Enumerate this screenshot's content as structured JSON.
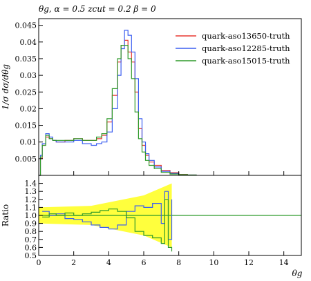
{
  "chart_data": {
    "type": "line",
    "title": "θg, α = 0.5 zcut = 0.2 β = 0",
    "xlabel": "θg",
    "ylabel": "1/σ dσ/dθg",
    "ratio_ylabel": "Ratio",
    "xlim": [
      0,
      15
    ],
    "ylim": [
      0,
      0.047
    ],
    "ratio_ylim": [
      0.5,
      1.5
    ],
    "xticks": [
      "0",
      "2",
      "4",
      "6",
      "8",
      "10",
      "12",
      "14"
    ],
    "yticks": [
      "0.005",
      "0.01",
      "0.015",
      "0.02",
      "0.025",
      "0.03",
      "0.035",
      "0.04",
      "0.045"
    ],
    "ratio_yticks": [
      "0.5",
      "0.6",
      "0.7",
      "0.8",
      "0.9",
      "1.0",
      "1.1",
      "1.2",
      "1.3",
      "1.4"
    ],
    "legend_position": "top-right",
    "series": [
      {
        "name": "quark-aso13650-truth",
        "color": "#e8362e",
        "x": [
          0,
          0.1,
          0.2,
          0.4,
          0.6,
          0.8,
          1.0,
          1.5,
          2.0,
          2.5,
          3.0,
          3.3,
          3.6,
          3.9,
          4.2,
          4.5,
          4.7,
          4.9,
          5.1,
          5.3,
          5.5,
          5.7,
          5.9,
          6.1,
          6.3,
          6.6,
          7.0,
          7.5,
          8.0,
          8.5,
          9.0
        ],
        "y": [
          0,
          0.005,
          0.009,
          0.0115,
          0.011,
          0.0105,
          0.01,
          0.0105,
          0.011,
          0.0105,
          0.0105,
          0.011,
          0.012,
          0.016,
          0.024,
          0.034,
          0.039,
          0.0405,
          0.037,
          0.034,
          0.025,
          0.014,
          0.009,
          0.006,
          0.004,
          0.003,
          0.0015,
          0.0008,
          0.0003,
          0.0001,
          0
        ]
      },
      {
        "name": "quark-aso12285-truth",
        "color": "#3b5ef0",
        "x": [
          0,
          0.1,
          0.2,
          0.4,
          0.6,
          0.8,
          1.0,
          1.5,
          2.0,
          2.5,
          3.0,
          3.3,
          3.6,
          3.9,
          4.2,
          4.5,
          4.7,
          4.9,
          5.1,
          5.3,
          5.5,
          5.7,
          5.9,
          6.1,
          6.3,
          6.6,
          7.0,
          7.5,
          8.0,
          8.5,
          9.0
        ],
        "y": [
          0,
          0.006,
          0.0095,
          0.0125,
          0.0115,
          0.0105,
          0.01,
          0.01,
          0.0105,
          0.0095,
          0.009,
          0.0095,
          0.01,
          0.013,
          0.02,
          0.03,
          0.038,
          0.0435,
          0.042,
          0.037,
          0.029,
          0.017,
          0.01,
          0.0065,
          0.0045,
          0.0025,
          0.0012,
          0.0006,
          0.0002,
          0.0001,
          0
        ]
      },
      {
        "name": "quark-aso15015-truth",
        "color": "#2f9a2a",
        "x": [
          0,
          0.1,
          0.2,
          0.4,
          0.6,
          0.8,
          1.0,
          1.5,
          2.0,
          2.5,
          3.0,
          3.3,
          3.6,
          3.9,
          4.2,
          4.5,
          4.7,
          4.9,
          5.1,
          5.3,
          5.5,
          5.7,
          5.9,
          6.1,
          6.3,
          6.6,
          7.0,
          7.5,
          8.0,
          8.5,
          9.0
        ],
        "y": [
          0,
          0.0055,
          0.009,
          0.012,
          0.011,
          0.0105,
          0.0105,
          0.0105,
          0.011,
          0.0105,
          0.0105,
          0.0115,
          0.0125,
          0.017,
          0.026,
          0.035,
          0.039,
          0.039,
          0.035,
          0.029,
          0.019,
          0.011,
          0.007,
          0.0045,
          0.003,
          0.002,
          0.0009,
          0.0004,
          0.0002,
          0.0001,
          0
        ]
      }
    ],
    "ratio_series": [
      {
        "name": "quark-aso12285-truth",
        "color": "#3b5ef0",
        "x": [
          0.2,
          0.6,
          1.0,
          1.5,
          2.0,
          2.5,
          3.0,
          3.5,
          4.0,
          4.5,
          5.0,
          5.5,
          6.0,
          6.5,
          7.0,
          7.2,
          7.4,
          7.6
        ],
        "y": [
          1.05,
          1.0,
          1.02,
          0.96,
          0.95,
          0.92,
          0.88,
          0.85,
          0.83,
          0.88,
          1.05,
          1.12,
          1.1,
          1.15,
          0.9,
          1.3,
          0.7,
          1.2
        ]
      },
      {
        "name": "quark-aso15015-truth",
        "color": "#2f9a2a",
        "x": [
          0.2,
          0.6,
          1.0,
          1.5,
          2.0,
          2.5,
          3.0,
          3.5,
          4.0,
          4.5,
          5.0,
          5.5,
          6.0,
          6.5,
          7.0,
          7.2,
          7.4,
          7.6
        ],
        "y": [
          0.98,
          1.02,
          1.0,
          1.03,
          1.0,
          1.02,
          1.04,
          1.06,
          1.08,
          1.05,
          0.97,
          0.8,
          0.75,
          0.72,
          0.65,
          1.2,
          0.6,
          0.55
        ]
      }
    ]
  }
}
